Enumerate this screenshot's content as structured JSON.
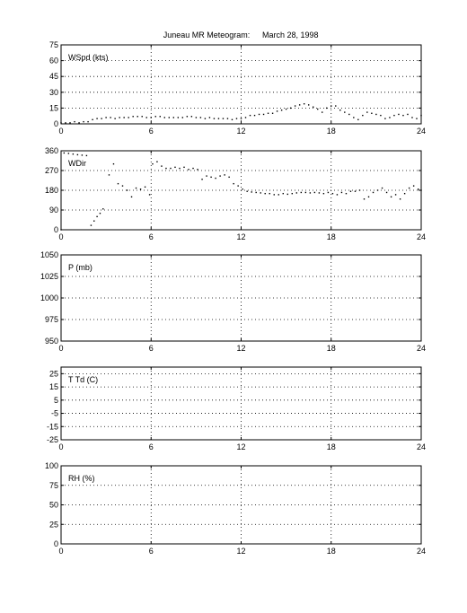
{
  "title": "Juneau MR Meteogram:",
  "date": "March 28, 1998",
  "chart_data": [
    {
      "type": "scatter",
      "label": "WSpd (kts)",
      "ylim": [
        0,
        75
      ],
      "yticks": [
        0,
        15,
        30,
        45,
        60,
        75
      ],
      "xlim": [
        0,
        24
      ],
      "xticks": [
        0,
        6,
        12,
        18,
        24
      ],
      "grid": true,
      "points": [
        [
          0.0,
          1
        ],
        [
          0.3,
          1
        ],
        [
          0.6,
          1
        ],
        [
          0.9,
          2
        ],
        [
          1.2,
          1
        ],
        [
          1.5,
          2
        ],
        [
          1.8,
          2
        ],
        [
          2.1,
          4
        ],
        [
          2.4,
          5
        ],
        [
          2.7,
          5
        ],
        [
          3.0,
          6
        ],
        [
          3.3,
          6
        ],
        [
          3.6,
          5
        ],
        [
          3.9,
          6
        ],
        [
          4.2,
          6
        ],
        [
          4.5,
          6
        ],
        [
          4.8,
          7
        ],
        [
          5.1,
          7
        ],
        [
          5.4,
          7
        ],
        [
          5.7,
          6
        ],
        [
          6.0,
          6
        ],
        [
          6.3,
          7
        ],
        [
          6.6,
          7
        ],
        [
          6.9,
          6
        ],
        [
          7.2,
          6
        ],
        [
          7.5,
          6
        ],
        [
          7.8,
          6
        ],
        [
          8.1,
          6
        ],
        [
          8.4,
          7
        ],
        [
          8.7,
          7
        ],
        [
          9.0,
          6
        ],
        [
          9.3,
          6
        ],
        [
          9.6,
          5
        ],
        [
          9.9,
          6
        ],
        [
          10.2,
          5
        ],
        [
          10.5,
          5
        ],
        [
          10.8,
          5
        ],
        [
          11.1,
          5
        ],
        [
          11.4,
          4
        ],
        [
          11.7,
          5
        ],
        [
          12.0,
          5
        ],
        [
          12.3,
          6
        ],
        [
          12.6,
          8
        ],
        [
          12.9,
          8
        ],
        [
          13.2,
          9
        ],
        [
          13.5,
          9
        ],
        [
          13.8,
          10
        ],
        [
          14.1,
          10
        ],
        [
          14.4,
          12
        ],
        [
          14.7,
          13
        ],
        [
          15.0,
          14
        ],
        [
          15.3,
          15
        ],
        [
          15.6,
          17
        ],
        [
          15.9,
          18
        ],
        [
          16.2,
          19
        ],
        [
          16.5,
          18
        ],
        [
          16.8,
          16
        ],
        [
          17.1,
          14
        ],
        [
          17.4,
          11
        ],
        [
          17.7,
          15
        ],
        [
          18.0,
          17
        ],
        [
          18.3,
          17
        ],
        [
          18.6,
          13
        ],
        [
          18.9,
          11
        ],
        [
          19.2,
          9
        ],
        [
          19.5,
          6
        ],
        [
          19.8,
          4
        ],
        [
          20.1,
          8
        ],
        [
          20.4,
          11
        ],
        [
          20.7,
          10
        ],
        [
          21.0,
          9
        ],
        [
          21.3,
          8
        ],
        [
          21.6,
          5
        ],
        [
          21.9,
          6
        ],
        [
          22.2,
          8
        ],
        [
          22.5,
          9
        ],
        [
          22.8,
          8
        ],
        [
          23.1,
          9
        ],
        [
          23.4,
          6
        ],
        [
          23.7,
          5
        ],
        [
          24.0,
          8
        ]
      ]
    },
    {
      "type": "scatter",
      "label": "WDir",
      "ylim": [
        0,
        360
      ],
      "yticks": [
        0,
        90,
        180,
        270,
        360
      ],
      "xlim": [
        0,
        24
      ],
      "xticks": [
        0,
        6,
        12,
        18,
        24
      ],
      "grid": true,
      "points": [
        [
          0.0,
          0
        ],
        [
          0.2,
          350
        ],
        [
          0.5,
          348
        ],
        [
          0.8,
          345
        ],
        [
          1.1,
          342
        ],
        [
          1.4,
          340
        ],
        [
          1.7,
          338
        ],
        [
          2.0,
          20
        ],
        [
          2.2,
          40
        ],
        [
          2.4,
          60
        ],
        [
          2.6,
          75
        ],
        [
          2.8,
          95
        ],
        [
          3.2,
          250
        ],
        [
          3.5,
          300
        ],
        [
          3.8,
          210
        ],
        [
          4.1,
          200
        ],
        [
          4.4,
          180
        ],
        [
          4.7,
          150
        ],
        [
          5.0,
          190
        ],
        [
          5.3,
          185
        ],
        [
          5.6,
          195
        ],
        [
          5.9,
          160
        ],
        [
          6.1,
          300
        ],
        [
          6.4,
          310
        ],
        [
          6.7,
          290
        ],
        [
          7.0,
          280
        ],
        [
          7.3,
          280
        ],
        [
          7.6,
          285
        ],
        [
          7.9,
          280
        ],
        [
          8.2,
          285
        ],
        [
          8.5,
          275
        ],
        [
          8.8,
          280
        ],
        [
          9.1,
          275
        ],
        [
          9.4,
          230
        ],
        [
          9.7,
          245
        ],
        [
          10.0,
          240
        ],
        [
          10.3,
          235
        ],
        [
          10.6,
          245
        ],
        [
          10.9,
          250
        ],
        [
          11.2,
          240
        ],
        [
          11.5,
          210
        ],
        [
          11.8,
          200
        ],
        [
          12.1,
          185
        ],
        [
          12.4,
          175
        ],
        [
          12.7,
          172
        ],
        [
          13.0,
          170
        ],
        [
          13.3,
          168
        ],
        [
          13.6,
          165
        ],
        [
          13.9,
          165
        ],
        [
          14.2,
          160
        ],
        [
          14.5,
          160
        ],
        [
          14.8,
          165
        ],
        [
          15.1,
          162
        ],
        [
          15.4,
          165
        ],
        [
          15.7,
          168
        ],
        [
          16.0,
          170
        ],
        [
          16.3,
          170
        ],
        [
          16.6,
          168
        ],
        [
          16.9,
          170
        ],
        [
          17.2,
          168
        ],
        [
          17.5,
          165
        ],
        [
          17.8,
          170
        ],
        [
          18.1,
          165
        ],
        [
          18.4,
          160
        ],
        [
          18.7,
          170
        ],
        [
          19.0,
          165
        ],
        [
          19.3,
          175
        ],
        [
          19.6,
          175
        ],
        [
          19.9,
          180
        ],
        [
          20.2,
          140
        ],
        [
          20.5,
          150
        ],
        [
          20.8,
          170
        ],
        [
          21.1,
          180
        ],
        [
          21.4,
          190
        ],
        [
          21.7,
          170
        ],
        [
          22.0,
          150
        ],
        [
          22.3,
          160
        ],
        [
          22.6,
          140
        ],
        [
          22.9,
          165
        ],
        [
          23.2,
          190
        ],
        [
          23.5,
          200
        ],
        [
          23.8,
          185
        ],
        [
          24.0,
          180
        ]
      ]
    },
    {
      "type": "scatter",
      "label": "P (mb)",
      "ylim": [
        950,
        1050
      ],
      "yticks": [
        950,
        975,
        1000,
        1025,
        1050
      ],
      "xlim": [
        0,
        24
      ],
      "xticks": [
        0,
        6,
        12,
        18,
        24
      ],
      "grid": true,
      "points": []
    },
    {
      "type": "scatter",
      "label": "T Td (C)",
      "ylim": [
        -25,
        30
      ],
      "yticks": [
        -25,
        -15,
        -5,
        5,
        15,
        25
      ],
      "xlim": [
        0,
        24
      ],
      "xticks": [
        0,
        6,
        12,
        18,
        24
      ],
      "grid": true,
      "points": []
    },
    {
      "type": "scatter",
      "label": "RH (%)",
      "ylim": [
        0,
        100
      ],
      "yticks": [
        0,
        25,
        50,
        75,
        100
      ],
      "xlim": [
        0,
        24
      ],
      "xticks": [
        0,
        6,
        12,
        18,
        24
      ],
      "grid": true,
      "points": []
    }
  ]
}
